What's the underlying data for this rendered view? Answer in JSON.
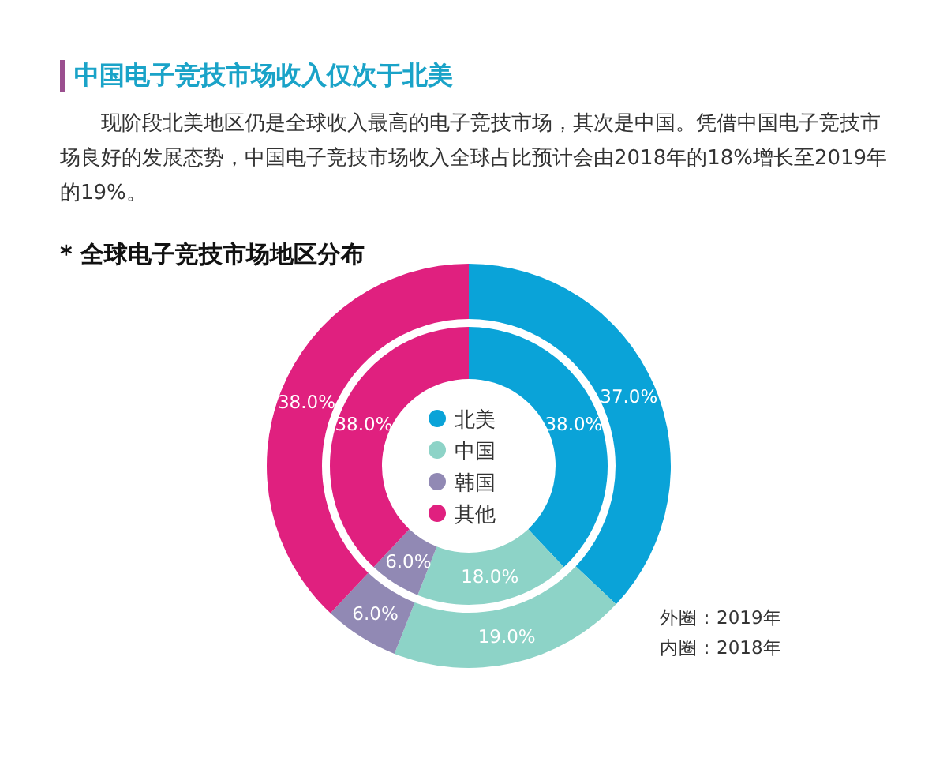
{
  "chart_data": {
    "type": "donut",
    "title": "中国电子竞技市场收入仅次于北美",
    "subtitle": "现阶段北美地区仍是全球收入最高的电子竞技市场，其次是中国。凭借中国电子竞技市场良好的发展态势，中国电子竞技市场收入全球占比预计会由2018年的18%增长至2019年的19%。",
    "categories": [
      "北美",
      "中国",
      "韩国",
      "其他"
    ],
    "colors": [
      "#0aa3d8",
      "#8dd3c7",
      "#9189b4",
      "#e0207f"
    ],
    "series": [
      {
        "values": [
          37,
          19,
          6,
          38
        ],
        "value_labels": [
          "37.0%",
          "19.0%",
          "6.0%",
          "38.0%"
        ]
      },
      {
        "values": [
          38,
          18,
          6,
          38
        ],
        "value_labels": [
          "38.0%",
          "18.0%",
          "6.0%",
          "38.0%"
        ]
      }
    ],
    "legend": "center",
    "annotations": [
      "* 全球电子竞技市场地区分布",
      "外圈：2019年",
      "内圈：2018年"
    ]
  }
}
